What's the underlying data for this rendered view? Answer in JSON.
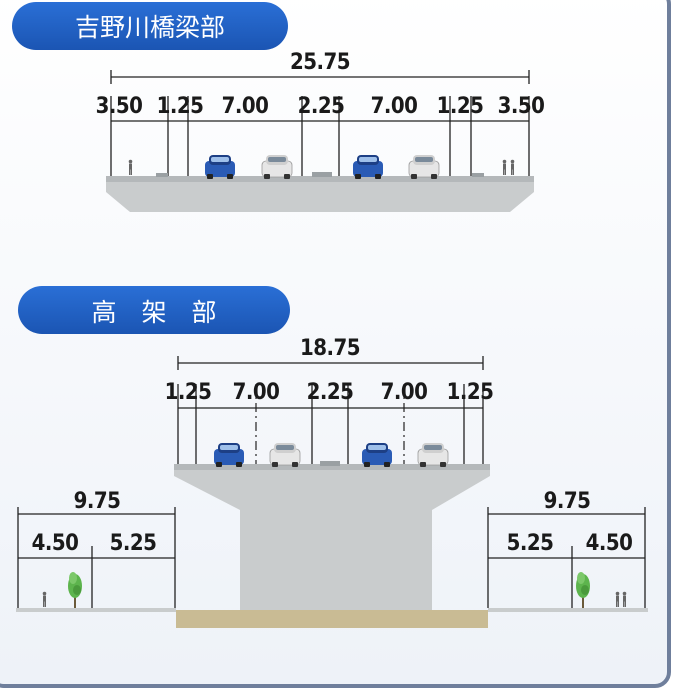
{
  "sections": {
    "bridge": {
      "title": "吉野川橋梁部",
      "total": "25.75",
      "segments": [
        "3.50",
        "1.25",
        "7.00",
        "2.25",
        "7.00",
        "1.25",
        "3.50"
      ]
    },
    "elevated": {
      "title": "高　架　部",
      "total": "18.75",
      "segments": [
        "1.25",
        "7.00",
        "2.25",
        "7.00",
        "1.25"
      ],
      "left": {
        "total": "9.75",
        "segments": [
          "4.50",
          "5.25"
        ]
      },
      "right": {
        "total": "9.75",
        "segments": [
          "5.25",
          "4.50"
        ]
      }
    }
  },
  "colors": {
    "pill": "#1f5fc4",
    "frame": "#6f7f9c",
    "concrete": "#c9cccd",
    "car_blue": "#2a5bb5",
    "car_white": "#e4e4e4",
    "tree": "#58b04a",
    "ground": "#c9bb94"
  }
}
